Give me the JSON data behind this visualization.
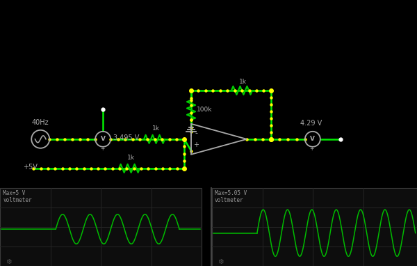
{
  "bg_color": "#000000",
  "wire_color": "#00ee00",
  "dot_color": "#ffff00",
  "component_color": "#aaaaaa",
  "resistor_color": "#00cc00",
  "wave_color": "#00bb00",
  "panel_bg": "#111111",
  "grid_color": "#252525",
  "label1": "Max=5 V\nvoltmeter",
  "label2": "Max=5.05 V\nvoltmeter",
  "volt1": "3.495 V",
  "volt2": "4.29 V",
  "freq_label": "40Hz",
  "v5_label": "+5V",
  "r1k_a": "1k",
  "r1k_b": "1k",
  "r1k_c": "1k",
  "r100k": "100k"
}
